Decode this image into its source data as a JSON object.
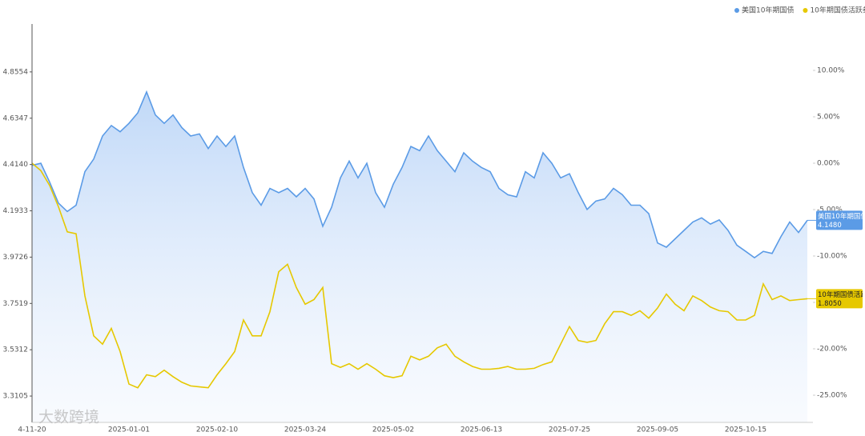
{
  "chart_data": {
    "type": "line",
    "legend_position": "top-right",
    "watermark": "大数跨境",
    "categories": [
      "4-11-20",
      null,
      null,
      null,
      null,
      null,
      null,
      null,
      null,
      null,
      null,
      "2025-01-01",
      null,
      null,
      null,
      null,
      null,
      null,
      null,
      null,
      null,
      "2025-02-10",
      null,
      null,
      null,
      null,
      null,
      null,
      null,
      null,
      null,
      "2025-03-24",
      null,
      null,
      null,
      null,
      null,
      null,
      null,
      null,
      null,
      "2025-05-02",
      null,
      null,
      null,
      null,
      null,
      null,
      null,
      null,
      null,
      "2025-06-13",
      null,
      null,
      null,
      null,
      null,
      null,
      null,
      null,
      null,
      "2025-07-25",
      null,
      null,
      null,
      null,
      null,
      null,
      null,
      null,
      null,
      "2025-09-05",
      null,
      null,
      null,
      null,
      null,
      null,
      null,
      null,
      null,
      "2025-10-15",
      null,
      null,
      null,
      null,
      null,
      null,
      null
    ],
    "ylim": [
      3.1849,
      5.0837
    ],
    "yticks": [
      {
        "value": 3.3105,
        "label": "3.3105"
      },
      3.5312,
      3.7519,
      3.9726,
      4.1933,
      {
        "value": 4.414,
        "label": "4.4140"
      },
      4.6347,
      4.8554
    ],
    "y2lim": [
      -27.93,
      15
    ],
    "y2ticks": [
      {
        "value": -25,
        "label": "-25.00%"
      },
      {
        "value": -20,
        "label": "-20.00%"
      },
      {
        "value": -15,
        "label": "-15.00%"
      },
      {
        "value": -10,
        "label": "-10.00%"
      },
      {
        "value": -5,
        "label": "-5.00%"
      },
      {
        "value": 0,
        "label": "0.00%"
      },
      {
        "value": 5,
        "label": "5.00%"
      },
      {
        "value": 10,
        "label": "10.00%"
      }
    ],
    "series": [
      {
        "name": "美国10年期国债",
        "color": "#5b9be6",
        "end_label": "4.1480",
        "values": [
          4.41,
          4.42,
          4.33,
          4.23,
          4.19,
          4.22,
          4.38,
          4.44,
          4.55,
          4.6,
          4.57,
          4.61,
          4.66,
          4.76,
          4.65,
          4.61,
          4.65,
          4.59,
          4.55,
          4.56,
          4.49,
          4.55,
          4.5,
          4.55,
          4.4,
          4.28,
          4.22,
          4.3,
          4.28,
          4.3,
          4.26,
          4.3,
          4.25,
          4.12,
          4.21,
          4.35,
          4.43,
          4.35,
          4.42,
          4.28,
          4.21,
          4.32,
          4.4,
          4.5,
          4.48,
          4.55,
          4.48,
          4.43,
          4.38,
          4.47,
          4.43,
          4.4,
          4.38,
          4.3,
          4.27,
          4.26,
          4.38,
          4.35,
          4.47,
          4.42,
          4.35,
          4.37,
          4.28,
          4.2,
          4.24,
          4.25,
          4.3,
          4.27,
          4.22,
          4.22,
          4.18,
          4.04,
          4.02,
          4.06,
          4.1,
          4.14,
          4.16,
          4.13,
          4.15,
          4.1,
          4.03,
          4.0,
          3.97,
          4.0,
          3.99,
          4.07,
          4.14,
          4.09,
          4.148
        ]
      },
      {
        "name": "10年期国债活跃券",
        "color": "#e6c800",
        "axis": "y2",
        "end_label": "1.8050",
        "values": [
          0,
          -0.8,
          -2.4,
          -4.7,
          -7.4,
          -7.6,
          -14.3,
          -18.6,
          -19.5,
          -17.8,
          -20.3,
          -23.8,
          -24.2,
          -22.8,
          -23.0,
          -22.3,
          -23.0,
          -23.6,
          -24.0,
          -24.1,
          -24.2,
          -22.8,
          -21.6,
          -20.3,
          -16.9,
          -18.6,
          -18.6,
          -16.0,
          -11.7,
          -10.9,
          -13.4,
          -15.2,
          -14.7,
          -13.4,
          -21.6,
          -22.0,
          -21.6,
          -22.2,
          -21.6,
          -22.2,
          -22.9,
          -23.1,
          -22.9,
          -20.8,
          -21.2,
          -20.8,
          -19.9,
          -19.5,
          -20.8,
          -21.4,
          -21.9,
          -22.2,
          -22.2,
          -22.1,
          -21.9,
          -22.2,
          -22.2,
          -22.1,
          -21.7,
          -21.4,
          -19.5,
          -17.6,
          -19.1,
          -19.3,
          -19.1,
          -17.3,
          -16.0,
          -16.0,
          -16.4,
          -15.9,
          -16.7,
          -15.6,
          -14.1,
          -15.2,
          -15.9,
          -14.3,
          -14.8,
          -15.5,
          -15.9,
          -16.0,
          -16.9,
          -16.9,
          -16.4,
          -13.0,
          -14.7,
          -14.3,
          -14.8,
          -14.7,
          -14.6
        ]
      }
    ]
  }
}
